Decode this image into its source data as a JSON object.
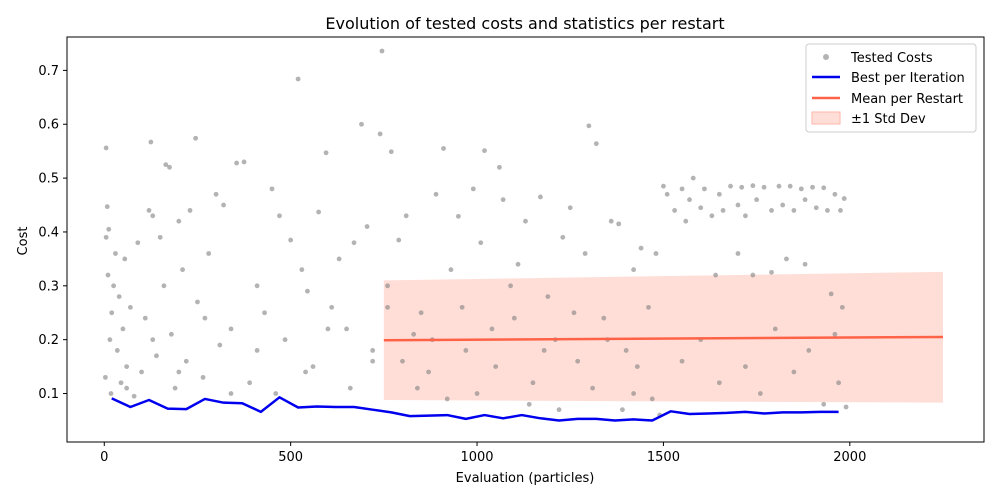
{
  "chart_data": {
    "type": "scatter",
    "title": "Evolution of tested costs and statistics per restart",
    "xlabel": "Evaluation (particles)",
    "ylabel": "Cost",
    "xlim": [
      -100,
      2360
    ],
    "ylim": [
      0.01,
      0.762
    ],
    "x_ticks": [
      0,
      500,
      1000,
      1500,
      2000
    ],
    "y_ticks": [
      0.1,
      0.2,
      0.3,
      0.4,
      0.5,
      0.6,
      0.7
    ],
    "grid": false,
    "legend_position": "top-right",
    "colors": {
      "scatter": "#808080",
      "best": "#0000ee",
      "mean": "#ff6347",
      "band": "#ffb6a8"
    },
    "series": [
      {
        "name": "Tested Costs",
        "kind": "scatter",
        "points": [
          [
            5,
            0.556
          ],
          [
            8,
            0.447
          ],
          [
            5,
            0.39
          ],
          [
            12,
            0.405
          ],
          [
            10,
            0.32
          ],
          [
            15,
            0.2
          ],
          [
            3,
            0.13
          ],
          [
            18,
            0.1
          ],
          [
            20,
            0.25
          ],
          [
            25,
            0.3
          ],
          [
            30,
            0.36
          ],
          [
            35,
            0.18
          ],
          [
            40,
            0.28
          ],
          [
            45,
            0.12
          ],
          [
            50,
            0.22
          ],
          [
            55,
            0.35
          ],
          [
            60,
            0.15
          ],
          [
            70,
            0.26
          ],
          [
            80,
            0.095
          ],
          [
            90,
            0.38
          ],
          [
            100,
            0.14
          ],
          [
            110,
            0.24
          ],
          [
            120,
            0.44
          ],
          [
            125,
            0.567
          ],
          [
            130,
            0.43
          ],
          [
            140,
            0.17
          ],
          [
            150,
            0.39
          ],
          [
            160,
            0.3
          ],
          [
            165,
            0.525
          ],
          [
            175,
            0.52
          ],
          [
            180,
            0.21
          ],
          [
            190,
            0.11
          ],
          [
            200,
            0.42
          ],
          [
            210,
            0.33
          ],
          [
            220,
            0.16
          ],
          [
            230,
            0.44
          ],
          [
            245,
            0.574
          ],
          [
            250,
            0.27
          ],
          [
            265,
            0.13
          ],
          [
            280,
            0.36
          ],
          [
            300,
            0.47
          ],
          [
            310,
            0.19
          ],
          [
            320,
            0.45
          ],
          [
            340,
            0.22
          ],
          [
            355,
            0.528
          ],
          [
            375,
            0.53
          ],
          [
            390,
            0.12
          ],
          [
            410,
            0.3
          ],
          [
            430,
            0.25
          ],
          [
            450,
            0.48
          ],
          [
            470,
            0.43
          ],
          [
            485,
            0.2
          ],
          [
            500,
            0.385
          ],
          [
            520,
            0.684
          ],
          [
            530,
            0.33
          ],
          [
            545,
            0.29
          ],
          [
            560,
            0.15
          ],
          [
            575,
            0.437
          ],
          [
            595,
            0.547
          ],
          [
            610,
            0.26
          ],
          [
            630,
            0.35
          ],
          [
            650,
            0.22
          ],
          [
            670,
            0.38
          ],
          [
            690,
            0.6
          ],
          [
            705,
            0.41
          ],
          [
            720,
            0.18
          ],
          [
            740,
            0.582
          ],
          [
            745,
            0.736
          ],
          [
            760,
            0.3
          ],
          [
            770,
            0.549
          ],
          [
            790,
            0.385
          ],
          [
            810,
            0.43
          ],
          [
            830,
            0.21
          ],
          [
            850,
            0.25
          ],
          [
            870,
            0.14
          ],
          [
            890,
            0.47
          ],
          [
            910,
            0.555
          ],
          [
            930,
            0.33
          ],
          [
            950,
            0.429
          ],
          [
            970,
            0.18
          ],
          [
            990,
            0.48
          ],
          [
            1010,
            0.38
          ],
          [
            1020,
            0.551
          ],
          [
            1040,
            0.22
          ],
          [
            1060,
            0.52
          ],
          [
            1070,
            0.46
          ],
          [
            1090,
            0.3
          ],
          [
            1110,
            0.34
          ],
          [
            1130,
            0.42
          ],
          [
            1150,
            0.12
          ],
          [
            1170,
            0.465
          ],
          [
            1190,
            0.28
          ],
          [
            1210,
            0.2
          ],
          [
            1230,
            0.39
          ],
          [
            1250,
            0.445
          ],
          [
            1270,
            0.16
          ],
          [
            1290,
            0.36
          ],
          [
            1300,
            0.597
          ],
          [
            1320,
            0.564
          ],
          [
            1340,
            0.24
          ],
          [
            1360,
            0.42
          ],
          [
            1380,
            0.415
          ],
          [
            1400,
            0.18
          ],
          [
            1420,
            0.33
          ],
          [
            1440,
            0.37
          ],
          [
            1460,
            0.26
          ],
          [
            1480,
            0.36
          ],
          [
            1500,
            0.485
          ],
          [
            1510,
            0.47
          ],
          [
            1530,
            0.44
          ],
          [
            1550,
            0.48
          ],
          [
            1560,
            0.42
          ],
          [
            1570,
            0.46
          ],
          [
            1580,
            0.5
          ],
          [
            1600,
            0.445
          ],
          [
            1610,
            0.48
          ],
          [
            1630,
            0.43
          ],
          [
            1650,
            0.47
          ],
          [
            1660,
            0.44
          ],
          [
            1680,
            0.485
          ],
          [
            1700,
            0.45
          ],
          [
            1710,
            0.483
          ],
          [
            1720,
            0.43
          ],
          [
            1740,
            0.486
          ],
          [
            1750,
            0.46
          ],
          [
            1770,
            0.483
          ],
          [
            1790,
            0.44
          ],
          [
            1810,
            0.485
          ],
          [
            1820,
            0.45
          ],
          [
            1840,
            0.485
          ],
          [
            1850,
            0.44
          ],
          [
            1870,
            0.48
          ],
          [
            1880,
            0.46
          ],
          [
            1900,
            0.483
          ],
          [
            1910,
            0.445
          ],
          [
            1930,
            0.482
          ],
          [
            1940,
            0.44
          ],
          [
            1960,
            0.47
          ],
          [
            1975,
            0.44
          ],
          [
            1985,
            0.462
          ],
          [
            1640,
            0.32
          ],
          [
            1700,
            0.36
          ],
          [
            1740,
            0.32
          ],
          [
            1790,
            0.325
          ],
          [
            1830,
            0.35
          ],
          [
            1880,
            0.34
          ],
          [
            1950,
            0.285
          ],
          [
            1960,
            0.21
          ],
          [
            1980,
            0.26
          ],
          [
            1990,
            0.075
          ],
          [
            1600,
            0.2
          ],
          [
            1650,
            0.12
          ],
          [
            1720,
            0.15
          ],
          [
            1760,
            0.1
          ],
          [
            1800,
            0.22
          ],
          [
            1850,
            0.14
          ],
          [
            1890,
            0.18
          ],
          [
            1930,
            0.08
          ],
          [
            1970,
            0.12
          ],
          [
            1550,
            0.16
          ],
          [
            760,
            0.26
          ],
          [
            800,
            0.16
          ],
          [
            840,
            0.11
          ],
          [
            880,
            0.2
          ],
          [
            920,
            0.09
          ],
          [
            960,
            0.26
          ],
          [
            1000,
            0.1
          ],
          [
            1050,
            0.15
          ],
          [
            1100,
            0.24
          ],
          [
            1140,
            0.08
          ],
          [
            1180,
            0.18
          ],
          [
            1220,
            0.07
          ],
          [
            1260,
            0.25
          ],
          [
            1310,
            0.11
          ],
          [
            1350,
            0.2
          ],
          [
            1390,
            0.07
          ],
          [
            1430,
            0.15
          ],
          [
            1470,
            0.09
          ],
          [
            1490,
            0.06
          ],
          [
            1420,
            0.1
          ],
          [
            60,
            0.11
          ],
          [
            130,
            0.2
          ],
          [
            200,
            0.14
          ],
          [
            270,
            0.24
          ],
          [
            340,
            0.1
          ],
          [
            410,
            0.18
          ],
          [
            460,
            0.1
          ],
          [
            540,
            0.14
          ],
          [
            600,
            0.22
          ],
          [
            660,
            0.11
          ],
          [
            720,
            0.16
          ]
        ]
      },
      {
        "name": "Best per Iteration",
        "kind": "line",
        "x": [
          20,
          70,
          120,
          170,
          220,
          270,
          320,
          370,
          420,
          470,
          520,
          570,
          620,
          670,
          720,
          770,
          820,
          870,
          920,
          970,
          1020,
          1070,
          1120,
          1170,
          1220,
          1270,
          1320,
          1370,
          1420,
          1470,
          1520,
          1570,
          1620,
          1670,
          1720,
          1770,
          1820,
          1870,
          1920,
          1970
        ],
        "y": [
          0.091,
          0.075,
          0.088,
          0.072,
          0.071,
          0.09,
          0.083,
          0.082,
          0.066,
          0.093,
          0.074,
          0.076,
          0.075,
          0.075,
          0.07,
          0.065,
          0.058,
          0.059,
          0.06,
          0.053,
          0.06,
          0.054,
          0.06,
          0.054,
          0.05,
          0.053,
          0.053,
          0.05,
          0.052,
          0.05,
          0.067,
          0.062,
          0.063,
          0.064,
          0.066,
          0.063,
          0.065,
          0.065,
          0.066,
          0.066
        ]
      },
      {
        "name": "Mean per Restart",
        "kind": "line",
        "x": [
          750,
          2250
        ],
        "y": [
          0.199,
          0.205
        ]
      },
      {
        "name": "±1 Std Dev",
        "kind": "band",
        "x": [
          750,
          2250
        ],
        "lower": [
          0.088,
          0.083
        ],
        "upper": [
          0.31,
          0.326
        ]
      }
    ]
  }
}
